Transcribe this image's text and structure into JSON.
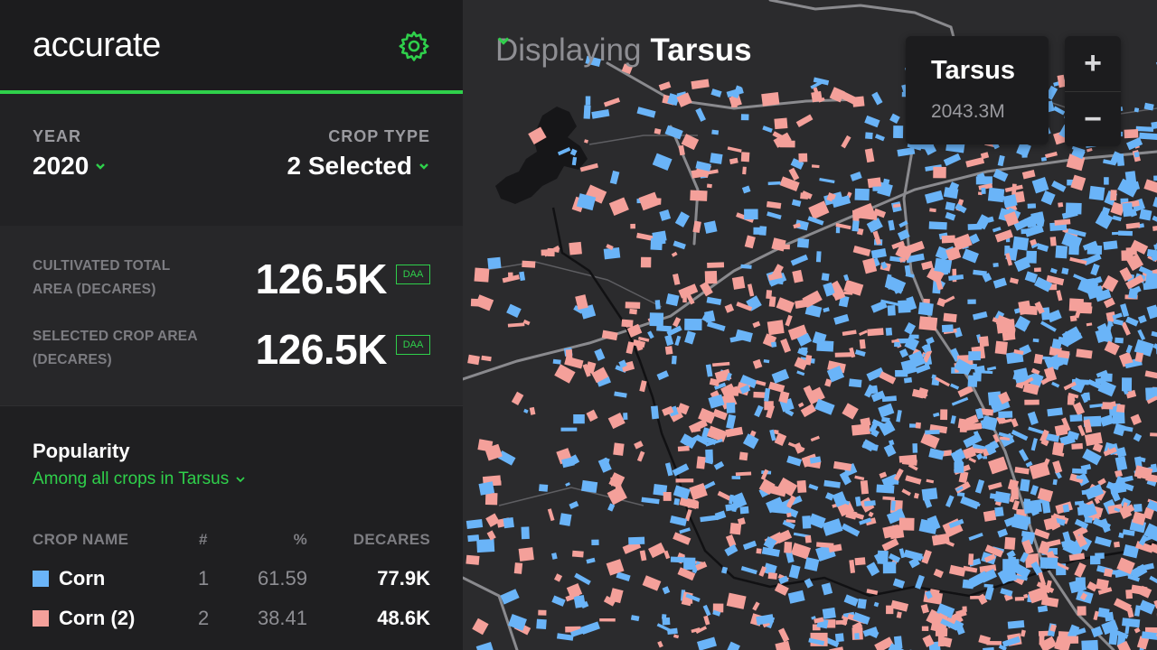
{
  "brand": {
    "logo_text": "accurate",
    "settings_icon": "gear-icon",
    "accent_color": "#2fd04b"
  },
  "filters": {
    "year": {
      "label": "YEAR",
      "value": "2020"
    },
    "crop_type": {
      "label": "CROP TYPE",
      "value": "2 Selected"
    }
  },
  "stats": [
    {
      "label": "CULTIVATED TOTAL AREA (DECARES)",
      "value": "126.5K",
      "unit": "DAA"
    },
    {
      "label": "SELECTED CROP AREA (DECARES)",
      "value": "126.5K",
      "unit": "DAA"
    }
  ],
  "popularity": {
    "title": "Popularity",
    "scope": "Among all crops in Tarsus",
    "columns": [
      "CROP NAME",
      "#",
      "%",
      "DECARES"
    ],
    "rows": [
      {
        "name": "Corn",
        "rank": "1",
        "percent": "61.59",
        "decares": "77.9K",
        "color": "#6ab4f8"
      },
      {
        "name": "Corn (2)",
        "rank": "2",
        "percent": "38.41",
        "decares": "48.6K",
        "color": "#f4a09a"
      }
    ]
  },
  "map": {
    "displaying_prefix": "Displaying",
    "region": "Tarsus",
    "card": {
      "name": "Tarsus",
      "area": "2043.3M"
    },
    "zoom_in": "+",
    "zoom_out": "−",
    "colors": {
      "background": "#2b2b2d",
      "field_blue": "#6ab4f8",
      "field_pink": "#f4a09a",
      "road": "#8a8a8e",
      "water": "#161618"
    }
  }
}
